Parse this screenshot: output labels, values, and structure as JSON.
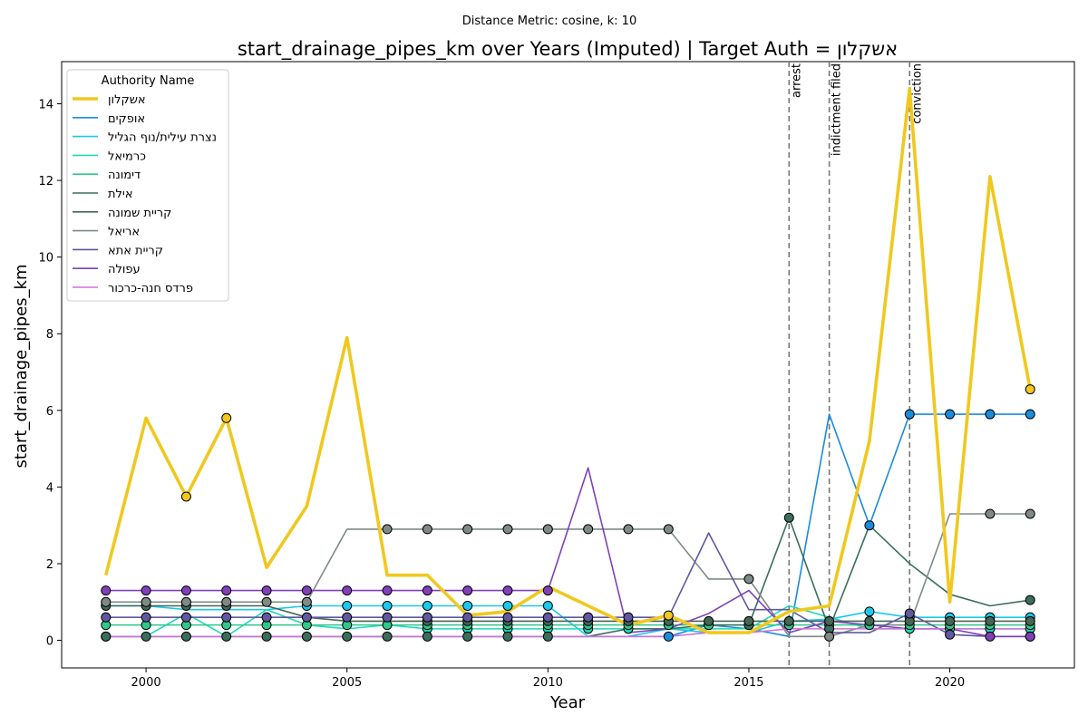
{
  "chart_data": {
    "type": "line",
    "suptitle": "Distance Metric: cosine, k: 10",
    "title": "start_drainage_pipes_km over Years (Imputed) | Target Auth = אשקלון",
    "xlabel": "Year",
    "ylabel": "start_drainage_pipes_km",
    "xlim": [
      1997.9,
      2023.1
    ],
    "ylim": [
      -0.72,
      15.1
    ],
    "xticks": [
      2000,
      2005,
      2010,
      2015,
      2020
    ],
    "yticks": [
      0,
      2,
      4,
      6,
      8,
      10,
      12,
      14
    ],
    "grid": false,
    "legend": {
      "title": "Authority Name",
      "placement": "top-left"
    },
    "events": [
      {
        "x": 2016,
        "label": "arrest"
      },
      {
        "x": 2017,
        "label": "indictment filed"
      },
      {
        "x": 2019,
        "label": "conviction"
      }
    ],
    "x": [
      1999,
      2000,
      2001,
      2002,
      2003,
      2004,
      2005,
      2006,
      2007,
      2008,
      2009,
      2010,
      2011,
      2012,
      2013,
      2014,
      2015,
      2016,
      2017,
      2018,
      2019,
      2020,
      2021,
      2022
    ],
    "series": [
      {
        "name": "אשקלון",
        "color": "#f0c81e",
        "target": true,
        "values": [
          1.7,
          5.8,
          3.75,
          5.8,
          1.9,
          3.5,
          7.9,
          1.7,
          1.7,
          0.65,
          0.75,
          1.4,
          0.9,
          0.4,
          0.65,
          0.2,
          0.2,
          0.75,
          0.9,
          5.2,
          14.4,
          1.0,
          12.1,
          6.55
        ],
        "imputed": [
          2001,
          2002,
          2013,
          2022
        ]
      },
      {
        "name": "אופקים",
        "color": "#1a8cdc",
        "values": [
          0.1,
          0.1,
          0.1,
          0.1,
          0.1,
          0.1,
          0.1,
          0.1,
          0.1,
          0.1,
          0.1,
          0.1,
          0.1,
          0.1,
          0.1,
          0.4,
          0.3,
          0.1,
          5.9,
          3.0,
          5.9,
          5.9,
          5.9,
          5.9
        ],
        "imputed": [
          1999,
          2013,
          2014,
          2018,
          2019,
          2020,
          2021,
          2022
        ]
      },
      {
        "name": "נצרת עילית/נוף הגליל",
        "color": "#1cc8ec",
        "values": [
          0.9,
          0.9,
          0.8,
          0.8,
          0.8,
          0.9,
          0.9,
          0.9,
          0.9,
          0.9,
          0.9,
          0.9,
          0.1,
          0.1,
          0.3,
          0.2,
          0.2,
          0.5,
          0.55,
          0.75,
          0.6,
          0.6,
          0.6,
          0.6
        ],
        "imputed": [
          2004,
          2005,
          2006,
          2007,
          2008,
          2009,
          2010,
          2018,
          2019,
          2020,
          2021,
          2022
        ]
      },
      {
        "name": "כרמיאל",
        "color": "#20d8b8",
        "values": [
          0.1,
          0.1,
          0.7,
          0.1,
          0.8,
          0.4,
          0.3,
          0.4,
          0.3,
          0.3,
          0.3,
          0.3,
          0.3,
          0.3,
          0.3,
          0.3,
          0.3,
          0.9,
          0.6,
          0.3,
          0.3,
          0.3,
          0.3,
          0.3
        ],
        "imputed": [
          2007,
          2008,
          2009,
          2010,
          2011,
          2012,
          2019,
          2020,
          2021,
          2022
        ]
      },
      {
        "name": "דימונה",
        "color": "#2ec88a",
        "values": [
          0.4,
          0.4,
          0.4,
          0.4,
          0.4,
          0.4,
          0.4,
          0.4,
          0.4,
          0.4,
          0.4,
          0.4,
          0.4,
          0.4,
          0.4,
          0.4,
          0.4,
          0.4,
          0.4,
          0.4,
          0.4,
          0.4,
          0.4,
          0.4
        ],
        "imputed": [
          1999,
          2000,
          2001,
          2002,
          2003,
          2004,
          2005,
          2006,
          2007,
          2008,
          2009,
          2010,
          2011,
          2012,
          2013,
          2014,
          2015,
          2016,
          2017,
          2018,
          2019,
          2020,
          2021,
          2022
        ]
      },
      {
        "name": "אילת",
        "color": "#3a6e5a",
        "values": [
          0.1,
          0.1,
          0.1,
          0.1,
          0.1,
          0.1,
          0.1,
          0.1,
          0.1,
          0.1,
          0.1,
          0.1,
          0.1,
          0.3,
          0.3,
          0.4,
          0.4,
          3.2,
          0.3,
          3.0,
          2.0,
          1.2,
          0.9,
          1.05
        ],
        "imputed": [
          1999,
          2000,
          2001,
          2002,
          2003,
          2004,
          2005,
          2006,
          2007,
          2008,
          2009,
          2010,
          2015,
          2016,
          2017,
          2022
        ]
      },
      {
        "name": "קריית שמונה",
        "color": "#446655",
        "values": [
          0.9,
          0.9,
          0.9,
          0.9,
          0.9,
          0.6,
          0.5,
          0.5,
          0.5,
          0.5,
          0.5,
          0.5,
          0.5,
          0.5,
          0.5,
          0.5,
          0.5,
          0.5,
          0.5,
          0.5,
          0.5,
          0.5,
          0.5,
          0.5
        ],
        "imputed": [
          1999,
          2000,
          2001,
          2002,
          2007,
          2008,
          2009,
          2010,
          2011,
          2012,
          2013,
          2014,
          2015,
          2016,
          2017,
          2018,
          2019,
          2020,
          2021,
          2022
        ]
      },
      {
        "name": "אריאל",
        "color": "#7f8a86",
        "values": [
          1.0,
          1.0,
          1.0,
          1.0,
          1.0,
          1.0,
          2.9,
          2.9,
          2.9,
          2.9,
          2.9,
          2.9,
          2.9,
          2.9,
          2.9,
          1.6,
          1.6,
          0.1,
          0.1,
          0.4,
          0.4,
          3.3,
          3.3,
          3.3
        ],
        "imputed": [
          1999,
          2000,
          2001,
          2002,
          2003,
          2004,
          2006,
          2007,
          2008,
          2009,
          2010,
          2011,
          2012,
          2013,
          2015,
          2017,
          2021,
          2022
        ]
      },
      {
        "name": "קריית אתא",
        "color": "#6058a0",
        "values": [
          0.6,
          0.6,
          0.6,
          0.6,
          0.6,
          0.6,
          0.6,
          0.6,
          0.6,
          0.6,
          0.6,
          0.6,
          0.6,
          0.6,
          0.6,
          2.8,
          0.8,
          0.8,
          0.2,
          0.2,
          0.7,
          0.15,
          0.1,
          0.1
        ],
        "imputed": [
          1999,
          2000,
          2001,
          2002,
          2003,
          2004,
          2005,
          2006,
          2007,
          2008,
          2009,
          2010,
          2011,
          2012,
          2019,
          2020,
          2022
        ]
      },
      {
        "name": "עפולה",
        "color": "#8040b8",
        "values": [
          1.3,
          1.3,
          1.3,
          1.3,
          1.3,
          1.3,
          1.3,
          1.3,
          1.3,
          1.3,
          1.3,
          1.3,
          4.5,
          0.2,
          0.3,
          0.7,
          1.3,
          0.2,
          0.5,
          0.4,
          0.3,
          0.3,
          0.1,
          0.1
        ],
        "imputed": [
          1999,
          2000,
          2001,
          2002,
          2003,
          2004,
          2005,
          2006,
          2007,
          2008,
          2009,
          2010,
          2021,
          2022
        ]
      },
      {
        "name": "פרדס חנה-כרכור",
        "color": "#d070d8",
        "values": [
          0.1,
          0.1,
          0.1,
          0.1,
          0.1,
          0.1,
          0.1,
          0.1,
          0.1,
          0.1,
          0.1,
          0.1,
          0.1,
          0.1,
          0.1,
          0.2,
          0.2,
          0.3,
          0.3,
          0.3,
          0.3,
          0.3,
          0.3,
          0.3
        ],
        "imputed": []
      }
    ]
  }
}
